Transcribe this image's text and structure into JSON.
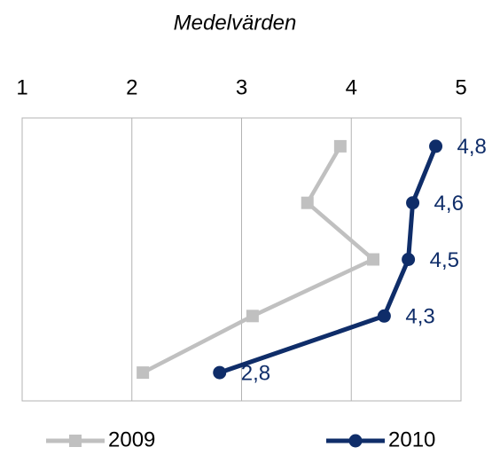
{
  "chart_data": {
    "type": "line",
    "orientation": "horizontal",
    "title": "Medelvärden",
    "categories": [
      null,
      null,
      null,
      null,
      null
    ],
    "series": [
      {
        "name": "2009",
        "color": "#c0c0c0",
        "marker": "square",
        "values": [
          3.9,
          3.6,
          4.2,
          3.1,
          2.1
        ]
      },
      {
        "name": "2010",
        "color": "#0f2d69",
        "marker": "circle",
        "values": [
          4.77,
          4.56,
          4.52,
          4.3,
          2.8
        ],
        "value_labels": [
          "4,8",
          "4,6",
          "4,5",
          "4,3",
          "2,8"
        ]
      }
    ],
    "xlim": [
      1,
      5
    ],
    "xticks": [
      1,
      2,
      3,
      4,
      5
    ],
    "grid": true,
    "legend": "bottom"
  }
}
